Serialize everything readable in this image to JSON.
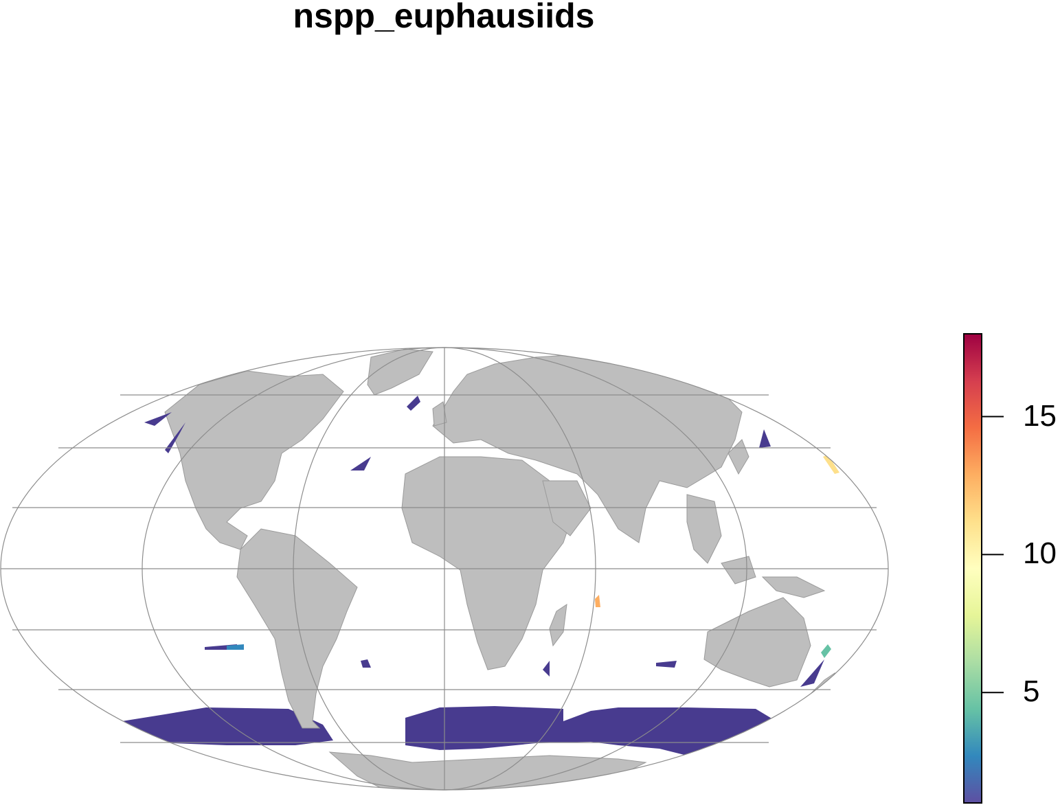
{
  "title": "nspp_euphausiids",
  "colors": {
    "land": "#bebebe",
    "land_border": "#9a9a9a",
    "graticule": "#8c8c8c",
    "low_value": "#483b8f"
  },
  "legend": {
    "min": 1,
    "max": 18,
    "ticks": [
      {
        "value": 5,
        "label": "5"
      },
      {
        "value": 10,
        "label": "10"
      },
      {
        "value": 15,
        "label": "15"
      }
    ],
    "palette": [
      "#5e4fa2",
      "#3288bd",
      "#66c2a5",
      "#abdda4",
      "#e6f598",
      "#ffffbf",
      "#fee08b",
      "#fdae61",
      "#f46d43",
      "#d53e4f",
      "#9e0142"
    ]
  }
}
